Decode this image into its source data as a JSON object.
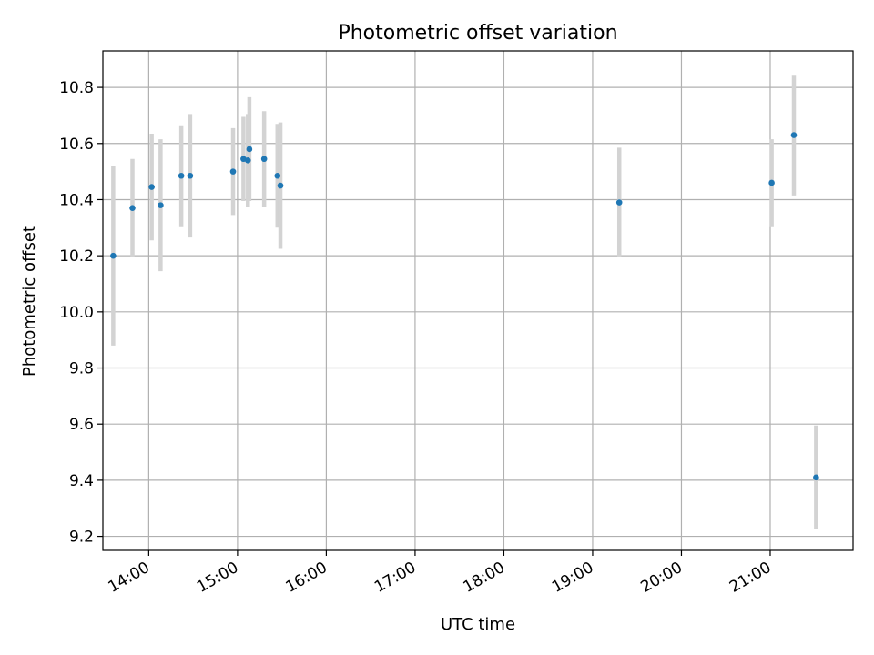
{
  "chart_data": {
    "type": "scatter",
    "title": "Photometric offset variation",
    "xlabel": "UTC time",
    "ylabel": "Photometric offset",
    "x_tick_labels": [
      "14:00",
      "15:00",
      "16:00",
      "17:00",
      "18:00",
      "19:00",
      "20:00",
      "21:00"
    ],
    "x_tick_times": [
      "14:00",
      "15:00",
      "16:00",
      "17:00",
      "18:00",
      "19:00",
      "20:00",
      "21:00"
    ],
    "y_ticks": [
      9.2,
      9.4,
      9.6,
      9.8,
      10.0,
      10.2,
      10.4,
      10.6,
      10.8
    ],
    "y_tick_labels": [
      "9.2",
      "9.4",
      "9.6",
      "9.8",
      "10.0",
      "10.2",
      "10.4",
      "10.6",
      "10.8"
    ],
    "xlim": [
      "13:29",
      "21:56"
    ],
    "ylim": [
      9.15,
      10.93
    ],
    "grid": true,
    "marker_color": "#1f77b4",
    "errorbar_color": "#d3d3d3",
    "points": [
      {
        "time": "13:36",
        "y": 10.2,
        "err": 0.32
      },
      {
        "time": "13:49",
        "y": 10.37,
        "err": 0.175
      },
      {
        "time": "14:02",
        "y": 10.445,
        "err": 0.19
      },
      {
        "time": "14:08",
        "y": 10.38,
        "err": 0.235
      },
      {
        "time": "14:22",
        "y": 10.485,
        "err": 0.18
      },
      {
        "time": "14:28",
        "y": 10.485,
        "err": 0.22
      },
      {
        "time": "14:57",
        "y": 10.5,
        "err": 0.155
      },
      {
        "time": "15:04",
        "y": 10.545,
        "err": 0.15
      },
      {
        "time": "15:07",
        "y": 10.54,
        "err": 0.165
      },
      {
        "time": "15:08",
        "y": 10.58,
        "err": 0.185
      },
      {
        "time": "15:18",
        "y": 10.545,
        "err": 0.17
      },
      {
        "time": "15:27",
        "y": 10.485,
        "err": 0.185
      },
      {
        "time": "15:29",
        "y": 10.45,
        "err": 0.225
      },
      {
        "time": "19:18",
        "y": 10.39,
        "err": 0.195
      },
      {
        "time": "21:01",
        "y": 10.46,
        "err": 0.155
      },
      {
        "time": "21:16",
        "y": 10.63,
        "err": 0.215
      },
      {
        "time": "21:31",
        "y": 9.41,
        "err": 0.185
      }
    ]
  }
}
